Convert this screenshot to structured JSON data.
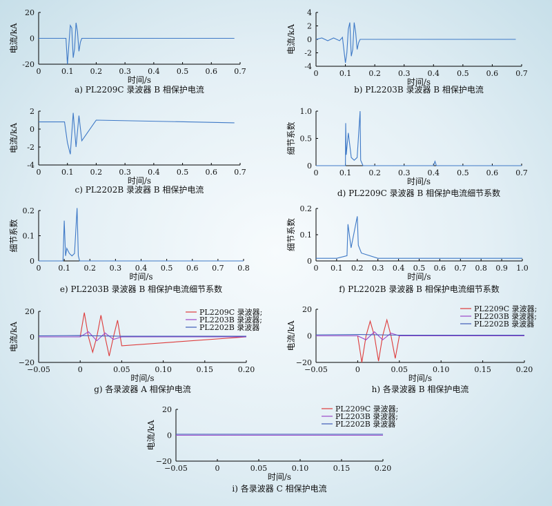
{
  "colors": {
    "line": "#3d78c6",
    "red": "#dd3a3a",
    "purple": "#9a45c8",
    "blue": "#3d5ab8",
    "axis": "#000000"
  },
  "chart_data": [
    {
      "id": "a",
      "type": "line",
      "caption": "a) PL2209C 录波器 B 相保护电流",
      "xlabel": "时间/s",
      "ylabel": "电流/kA",
      "xlim": [
        0,
        0.7
      ],
      "ylim": [
        -20,
        20
      ],
      "xticks": [
        "0",
        "0.1",
        "0.2",
        "0.3",
        "0.4",
        "0.5",
        "0.6",
        "0.7"
      ],
      "yticks": [
        "-20",
        "0",
        "20"
      ],
      "series": [
        {
          "x": [
            0,
            0.09,
            0.095,
            0.1,
            0.105,
            0.11,
            0.115,
            0.12,
            0.125,
            0.13,
            0.135,
            0.14,
            0.145,
            0.15,
            0.68
          ],
          "y": [
            0,
            0,
            0,
            -20,
            -5,
            10,
            8,
            -15,
            -8,
            12,
            5,
            -10,
            -3,
            0,
            0
          ]
        }
      ]
    },
    {
      "id": "b",
      "type": "line",
      "caption": "b) PL2203B 录波器 B 相保护电流",
      "xlabel": "时间/s",
      "ylabel": "电流/kA",
      "xlim": [
        0,
        0.7
      ],
      "ylim": [
        -4,
        4
      ],
      "xticks": [
        "0",
        "0.1",
        "0.2",
        "0.3",
        "0.4",
        "0.5",
        "0.6",
        "0.7"
      ],
      "yticks": [
        "-4",
        "-2",
        "0",
        "2",
        "4"
      ],
      "series": [
        {
          "x": [
            0,
            0.02,
            0.04,
            0.06,
            0.08,
            0.09,
            0.1,
            0.105,
            0.11,
            0.115,
            0.12,
            0.125,
            0.13,
            0.135,
            0.14,
            0.145,
            0.15,
            0.68
          ],
          "y": [
            0,
            0.2,
            -0.2,
            0.2,
            -0.2,
            0.3,
            -3.5,
            -2,
            1.5,
            2.5,
            -2.5,
            -1.5,
            2.5,
            1,
            -1.5,
            -0.5,
            0,
            0
          ]
        }
      ]
    },
    {
      "id": "c",
      "type": "line",
      "caption": "c) PL2202B 录波器 B 相保护电流",
      "xlabel": "时间/s",
      "ylabel": "电流/kA",
      "xlim": [
        0,
        0.7
      ],
      "ylim": [
        -4,
        2
      ],
      "xticks": [
        "0",
        "0.1",
        "0.2",
        "0.3",
        "0.4",
        "0.5",
        "0.6",
        "0.7"
      ],
      "yticks": [
        "-4",
        "-2",
        "0",
        "2"
      ],
      "series": [
        {
          "x": [
            0,
            0.09,
            0.1,
            0.11,
            0.12,
            0.13,
            0.14,
            0.15,
            0.2,
            0.68
          ],
          "y": [
            0.8,
            0.8,
            -1.5,
            -2.8,
            1.8,
            -2,
            1.5,
            -1.3,
            1,
            0.7
          ]
        }
      ]
    },
    {
      "id": "d",
      "type": "line",
      "caption": "d) PL2209C 录波器 B 相保护电流细节系数",
      "xlabel": "时间/s",
      "ylabel": "细节系数",
      "xlim": [
        0,
        0.7
      ],
      "ylim": [
        0,
        1.0
      ],
      "xticks": [
        "0",
        "0.1",
        "0.2",
        "0.3",
        "0.4",
        "0.5",
        "0.6",
        "0.7"
      ],
      "yticks": [
        "0",
        "0.5",
        "1.0"
      ],
      "series": [
        {
          "x": [
            0,
            0.1,
            0.101,
            0.103,
            0.11,
            0.12,
            0.13,
            0.14,
            0.15,
            0.152,
            0.16,
            0.4,
            0.405,
            0.41,
            0.7
          ],
          "y": [
            0,
            0,
            0.78,
            0.2,
            0.6,
            0.15,
            0.1,
            0.15,
            1.0,
            0.1,
            0,
            0,
            0.08,
            0,
            0
          ]
        }
      ]
    },
    {
      "id": "e",
      "type": "line",
      "caption": "e) PL2203B 录波器 B 相保护电流细节系数",
      "xlabel": "时间/s",
      "ylabel": "细节系数",
      "xlim": [
        0,
        0.8
      ],
      "ylim": [
        0,
        0.2
      ],
      "xticks": [
        "0",
        "0.1",
        "0.2",
        "0.3",
        "0.4",
        "0.5",
        "0.6",
        "0.7",
        "0.8"
      ],
      "yticks": [
        "0",
        "0.1",
        "0.2"
      ],
      "series": [
        {
          "x": [
            0,
            0.095,
            0.1,
            0.105,
            0.11,
            0.12,
            0.13,
            0.14,
            0.15,
            0.155,
            0.16,
            0.8
          ],
          "y": [
            0,
            0,
            0.16,
            0.02,
            0.05,
            0.03,
            0.02,
            0.03,
            0.21,
            0.02,
            0,
            0
          ]
        }
      ]
    },
    {
      "id": "f",
      "type": "line",
      "caption": "f) PL2202B 录波器 B 相保护电流细节系数",
      "xlabel": "时间/s",
      "ylabel": "细节系数",
      "xlim": [
        0,
        1.0
      ],
      "ylim": [
        0,
        0.2
      ],
      "xticks": [
        "0",
        "0.1",
        "0.2",
        "0.3",
        "0.4",
        "0.5",
        "0.6",
        "0.7",
        "0.8",
        "0.9",
        "1.0"
      ],
      "yticks": [
        "0",
        "0.1",
        "0.2"
      ],
      "series": [
        {
          "x": [
            0,
            0.1,
            0.15,
            0.155,
            0.17,
            0.2,
            0.205,
            0.22,
            0.3,
            1.0
          ],
          "y": [
            0.01,
            0.01,
            0.02,
            0.14,
            0.05,
            0.17,
            0.06,
            0.03,
            0.01,
            0.01
          ]
        }
      ]
    },
    {
      "id": "g",
      "type": "line",
      "caption": "g) 各录波器 A 相保护电流",
      "xlabel": "时间/s",
      "ylabel": "电流/kA",
      "xlim": [
        -0.05,
        0.2
      ],
      "ylim": [
        -20,
        20
      ],
      "xticks": [
        "−0.05",
        "0",
        "0.05",
        "0.10",
        "0.15",
        "0.20"
      ],
      "yticks": [
        "−20",
        "0",
        "20"
      ],
      "legend": [
        "PL2209C 录波器;",
        "PL2203B 录波器;",
        "PL2202B 录波器"
      ],
      "series": [
        {
          "name": "PL2209C 录波器;",
          "x": [
            -0.05,
            0,
            0.005,
            0.01,
            0.015,
            0.02,
            0.025,
            0.03,
            0.035,
            0.04,
            0.045,
            0.05,
            0.2
          ],
          "y": [
            0,
            0,
            19,
            0,
            -12,
            0,
            17,
            0,
            -15,
            0,
            13,
            -7,
            0
          ]
        },
        {
          "name": "PL2203B 录波器;",
          "x": [
            -0.05,
            0,
            0.01,
            0.02,
            0.03,
            0.04,
            0.05,
            0.2
          ],
          "y": [
            0,
            0,
            4,
            -3,
            3,
            -2,
            0,
            0
          ]
        },
        {
          "name": "PL2202B 录波器",
          "x": [
            -0.05,
            0,
            0.05,
            0.2
          ],
          "y": [
            0.8,
            1,
            0.5,
            0.5
          ]
        }
      ]
    },
    {
      "id": "h",
      "type": "line",
      "caption": "h) 各录波器 B 相保护电流",
      "xlabel": "时间/s",
      "ylabel": "电流/kA",
      "xlim": [
        -0.05,
        0.2
      ],
      "ylim": [
        -20,
        20
      ],
      "xticks": [
        "−0.05",
        "0",
        "0.05",
        "0.10",
        "0.15",
        "0.20"
      ],
      "yticks": [
        "−20",
        "0",
        "20"
      ],
      "legend": [
        "PL2209C 录波器;",
        "PL2203B 录波器;",
        "PL2202B 录波器"
      ],
      "series": [
        {
          "name": "PL2209C 录波器;",
          "x": [
            -0.05,
            0,
            0.005,
            0.01,
            0.015,
            0.02,
            0.025,
            0.03,
            0.035,
            0.04,
            0.045,
            0.05,
            0.2
          ],
          "y": [
            0,
            0,
            -20,
            0,
            11,
            0,
            -19,
            0,
            12,
            0,
            -17,
            0,
            0
          ]
        },
        {
          "name": "PL2203B 录波器;",
          "x": [
            -0.05,
            0,
            0.01,
            0.02,
            0.03,
            0.04,
            0.05,
            0.2
          ],
          "y": [
            0,
            0,
            -3,
            3,
            -3,
            2,
            0,
            0
          ]
        },
        {
          "name": "PL2202B 录波器",
          "x": [
            -0.05,
            0,
            0.05,
            0.2
          ],
          "y": [
            0.8,
            1,
            0.5,
            0.5
          ]
        }
      ]
    },
    {
      "id": "i",
      "type": "line",
      "caption": "i) 各录波器 C 相保护电流",
      "xlabel": "时间/s",
      "ylabel": "电流/kA",
      "xlim": [
        -0.05,
        0.2
      ],
      "ylim": [
        -20,
        20
      ],
      "xticks": [
        "−0.05",
        "0",
        "0.05",
        "0.10",
        "0.15",
        "0.20"
      ],
      "yticks": [
        "−20",
        "0",
        "20"
      ],
      "legend": [
        "PL2209C 录波器;",
        "PL2203B 录波器;",
        "PL2202B 录波器"
      ],
      "series": [
        {
          "name": "PL2209C 录波器;",
          "x": [
            -0.05,
            0.2
          ],
          "y": [
            0,
            0
          ]
        },
        {
          "name": "PL2203B 录波器;",
          "x": [
            -0.05,
            0.2
          ],
          "y": [
            0,
            0
          ]
        },
        {
          "name": "PL2202B 录波器",
          "x": [
            -0.05,
            0.2
          ],
          "y": [
            0.8,
            0.8
          ]
        }
      ]
    }
  ]
}
